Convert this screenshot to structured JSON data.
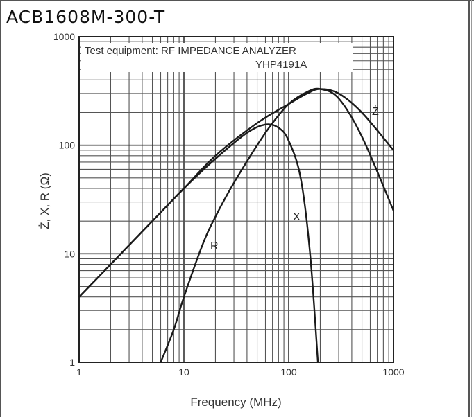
{
  "title": "ACB1608M-300-T",
  "chart_data": {
    "type": "line",
    "xscale": "log",
    "yscale": "log",
    "xlim": [
      1,
      1000
    ],
    "ylim": [
      1,
      1000
    ],
    "grid": true,
    "xlabel": "Frequency (MHz)",
    "ylabel": "Ż, X, R (Ω)",
    "x_ticks": [
      "1",
      "10",
      "100",
      "1000"
    ],
    "y_ticks": [
      "1",
      "10",
      "100",
      "1000"
    ],
    "annotation": [
      "Test equipment: RF IMPEDANCE ANALYZER",
      "YHP4191A"
    ],
    "series": [
      {
        "name": "Ż",
        "x": [
          1,
          2,
          5,
          10,
          20,
          50,
          100,
          150,
          200,
          300,
          500,
          1000
        ],
        "y": [
          4,
          8,
          20,
          40,
          80,
          160,
          240,
          300,
          330,
          300,
          200,
          90
        ]
      },
      {
        "name": "R",
        "x": [
          6,
          8,
          10,
          15,
          20,
          30,
          50,
          70,
          100,
          150,
          200,
          300,
          500,
          1000
        ],
        "y": [
          1,
          2,
          4,
          12,
          22,
          45,
          100,
          160,
          240,
          310,
          330,
          270,
          120,
          25
        ]
      },
      {
        "name": "X",
        "x": [
          1,
          2,
          5,
          10,
          20,
          40,
          60,
          80,
          100,
          130,
          160,
          190
        ],
        "y": [
          4,
          8,
          20,
          40,
          75,
          130,
          155,
          145,
          110,
          50,
          10,
          1
        ]
      }
    ]
  }
}
